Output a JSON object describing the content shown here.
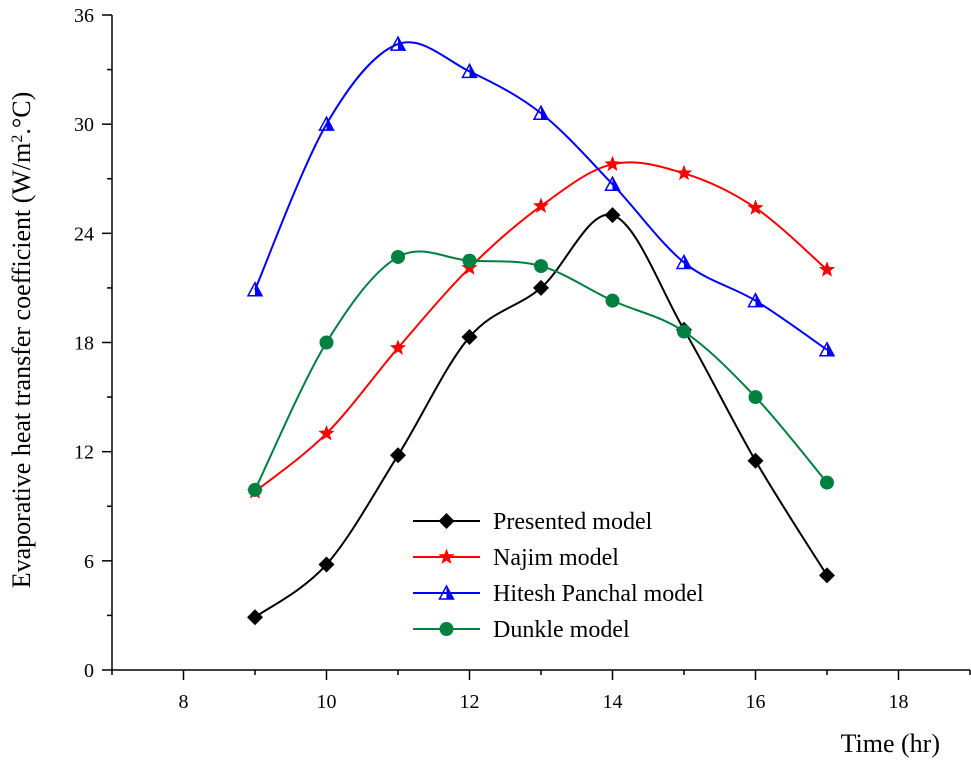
{
  "chart_data": {
    "type": "line",
    "title": "",
    "xlabel": "Time (hr)",
    "ylabel": {
      "prefix": "Evaporative heat transfer coefficient (W/m",
      "sup": "2",
      "suffix": ".°C)"
    },
    "xlim": [
      7,
      19
    ],
    "ylim": [
      0,
      36
    ],
    "xticks": [
      8,
      10,
      12,
      14,
      16,
      18
    ],
    "yticks": [
      0,
      6,
      12,
      18,
      24,
      30,
      36
    ],
    "legend_position": "bottom-center",
    "x": [
      9,
      10,
      11,
      12,
      13,
      14,
      15,
      16,
      17
    ],
    "series": [
      {
        "name": "Presented model",
        "color": "#000000",
        "marker": "diamond",
        "values": [
          2.9,
          5.8,
          11.8,
          18.3,
          21.0,
          25.0,
          18.7,
          11.5,
          5.2
        ]
      },
      {
        "name": "Najim model",
        "color": "#ff0000",
        "marker": "star",
        "values": [
          9.8,
          13.0,
          17.7,
          22.1,
          25.5,
          27.8,
          27.3,
          25.4,
          22.0
        ]
      },
      {
        "name": "Hitesh Panchal model",
        "color": "#0000ff",
        "marker": "half-triangle",
        "values": [
          20.9,
          30.0,
          34.4,
          32.9,
          30.6,
          26.7,
          22.4,
          20.3,
          17.6
        ]
      },
      {
        "name": "Dunkle model",
        "color": "#008040",
        "marker": "circle",
        "values": [
          9.9,
          18.0,
          22.7,
          22.5,
          22.2,
          20.3,
          18.6,
          15.0,
          10.3
        ]
      }
    ]
  }
}
